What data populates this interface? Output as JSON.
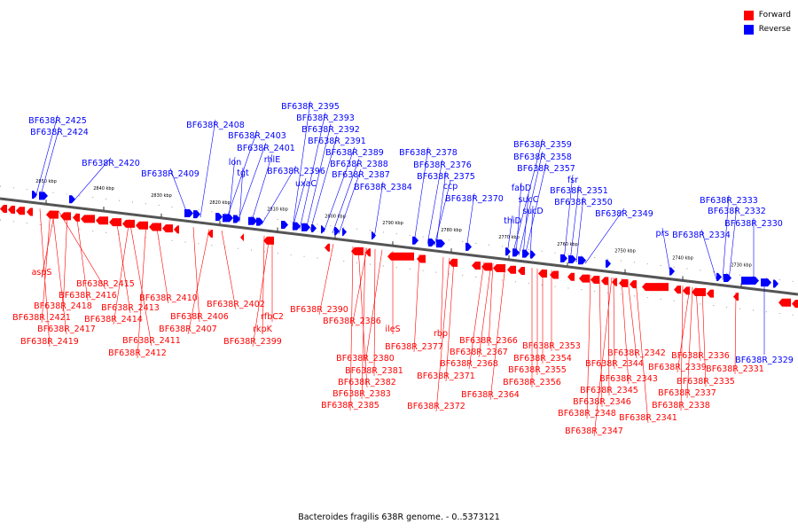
{
  "caption": "Bacteroides fragilis 638R genome. - 0..5373121",
  "legend": [
    {
      "label": "Forward",
      "color": "#ff0000"
    },
    {
      "label": "Reverse",
      "color": "#0000ff"
    }
  ],
  "colors": {
    "forward": "#ff0000",
    "reverse": "#0000ff",
    "axis": "#555555"
  },
  "ticks": [
    "2850 kbp",
    "2840 kbp",
    "2830 kbp",
    "2820 kbp",
    "2810 kbp",
    "2800 kbp",
    "2790 kbp",
    "2780 kbp",
    "2770 kbp",
    "2760 kbp",
    "2750 kbp",
    "2740 kbp",
    "2730 kbp"
  ],
  "reverse_labels": [
    "BF638R_2425",
    "BF638R_2424",
    "BF638R_2420",
    "BF638R_2409",
    "BF638R_2408",
    "BF638R_2403",
    "lon",
    "BF638R_2401",
    "tgt",
    "rhlE",
    "BF638R_2396",
    "uxaC",
    "BF638R_2395",
    "BF638R_2393",
    "BF638R_2392",
    "BF638R_2391",
    "BF638R_2389",
    "BF638R_2388",
    "BF638R_2387",
    "BF638R_2384",
    "BF638R_2378",
    "BF638R_2376",
    "BF638R_2375",
    "ccp",
    "BF638R_2370",
    "BF638R_2359",
    "BF638R_2358",
    "BF638R_2357",
    "fabD",
    "sucC",
    "sucD",
    "thiD",
    "fsr",
    "BF638R_2351",
    "BF638R_2350",
    "BF638R_2349",
    "prs",
    "BF638R_2334",
    "BF638R_2333",
    "BF638R_2332",
    "BF638R_2330",
    "BF638R_2329"
  ],
  "forward_labels": [
    "aspS",
    "BF638R_2415",
    "BF638R_2416",
    "BF638R_2418",
    "BF638R_2413",
    "BF638R_2421",
    "BF638R_2414",
    "BF638R_2417",
    "BF638R_2419",
    "BF638R_2411",
    "BF638R_2412",
    "BF638R_2410",
    "BF638R_2406",
    "BF638R_2407",
    "BF638R_2402",
    "rfbC2",
    "rkpK",
    "BF638R_2399",
    "BF638R_2390",
    "BF638R_2386",
    "ileS",
    "BF638R_2380",
    "BF638R_2381",
    "BF638R_2382",
    "BF638R_2383",
    "BF638R_2385",
    "BF638R_2377",
    "rbp",
    "BF638R_2371",
    "BF638R_2372",
    "BF638R_2366",
    "BF638R_2367",
    "BF638R_2368",
    "BF638R_2364",
    "BF638R_2353",
    "BF638R_2354",
    "BF638R_2355",
    "BF638R_2356",
    "BF638R_2342",
    "BF638R_2344",
    "BF638R_2343",
    "BF638R_2345",
    "BF638R_2346",
    "BF638R_2348",
    "BF638R_2347",
    "BF638R_2341",
    "BF638R_2336",
    "BF638R_2339",
    "BF638R_2335",
    "BF638R_2337",
    "BF638R_2338",
    "BF638R_2331"
  ]
}
